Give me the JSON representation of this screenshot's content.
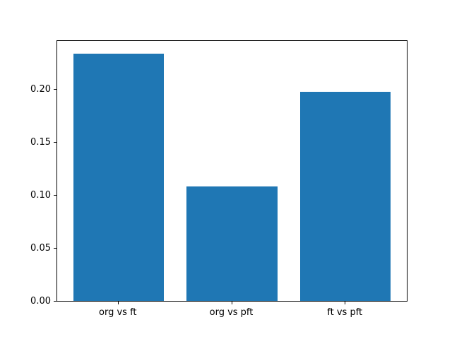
{
  "chart_data": {
    "type": "bar",
    "title": "",
    "xlabel": "",
    "ylabel": "",
    "categories": [
      "org vs ft",
      "org vs pft",
      "ft vs pft"
    ],
    "values": [
      0.233,
      0.108,
      0.197
    ],
    "bar_color": "#1f77b4",
    "spine_color": "#000000",
    "background_color": "#ffffff",
    "ylim": [
      0,
      0.245
    ],
    "xlim": [
      -0.54,
      2.54
    ],
    "bar_width": 0.8,
    "yticks": [
      0.0,
      0.05,
      0.1,
      0.15,
      0.2
    ],
    "ytick_labels": [
      "0.00",
      "0.05",
      "0.10",
      "0.15",
      "0.20"
    ],
    "grid": false,
    "legend": false
  }
}
